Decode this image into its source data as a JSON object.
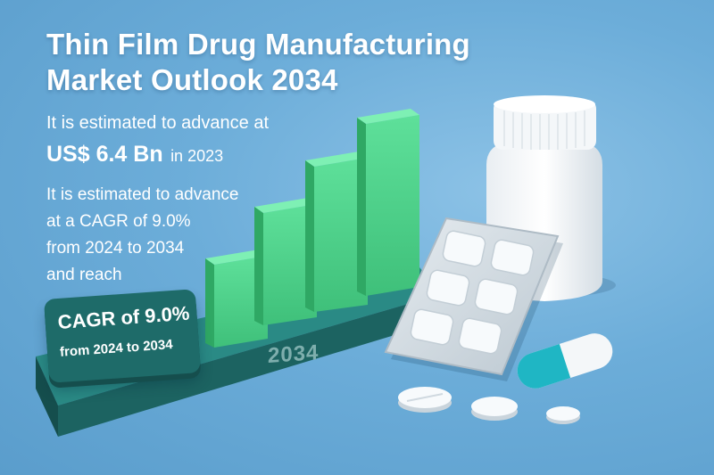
{
  "title": {
    "line1": "Thin Film Drug Manufacturing",
    "line2": "Market Outlook 2034"
  },
  "estimate": {
    "line1": "It is estimated to advance at",
    "value": "US$ 6.4 Bn",
    "year": "in 2023"
  },
  "cagr_text": {
    "line1": "It is estimated to advance",
    "line2": "at a CAGR of 9.0%",
    "line3": "from 2024 to 2034",
    "line4": "and reach"
  },
  "badge": {
    "line1": "CAGR of 9.0%",
    "line2": "from 2024 to 2034"
  },
  "base_label": "2034",
  "colors": {
    "background": "#6cadd9",
    "bar": "#4fcf8a",
    "base": "#1e6b69",
    "capsule": "#1fb6c4"
  },
  "icons": [
    "bar-chart-3d",
    "pill-bottle-icon",
    "blister-pack-icon",
    "capsule-icon",
    "tablet-icon"
  ]
}
